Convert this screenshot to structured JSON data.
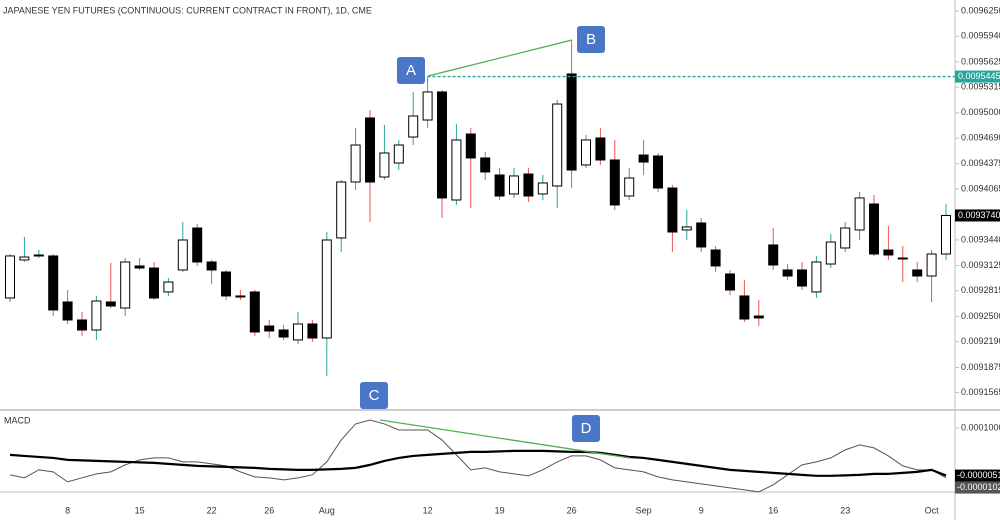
{
  "chart_data": [
    {
      "type": "candlestick",
      "title": "JAPANESE YEN FUTURES (CONTINUOUS: CURRENT CONTRACT IN FRONT), 1D, CME",
      "categories": [
        null,
        null,
        null,
        null,
        "8",
        null,
        null,
        null,
        null,
        "15",
        null,
        null,
        null,
        null,
        "22",
        null,
        null,
        null,
        "26",
        null,
        null,
        null,
        "Aug",
        null,
        null,
        null,
        null,
        null,
        null,
        "12",
        null,
        null,
        null,
        null,
        "19",
        null,
        null,
        null,
        null,
        "26",
        null,
        null,
        null,
        null,
        "Sep",
        null,
        null,
        null,
        "9",
        null,
        null,
        null,
        null,
        "16",
        null,
        null,
        null,
        null,
        "23",
        null,
        null,
        null,
        null,
        null,
        "Oct",
        null
      ],
      "open": [
        0.0092727,
        0.0093194,
        0.0093243,
        0.0093243,
        0.0092678,
        0.0092457,
        0.0092334,
        0.0092678,
        0.0092604,
        0.009312,
        0.0093095,
        0.0092801,
        0.0093071,
        0.0093586,
        0.0093169,
        0.0093046,
        0.0092752,
        0.0092801,
        0.0092383,
        0.0092334,
        0.0092212,
        0.0092408,
        0.0092236,
        0.0093464,
        0.0094151,
        0.0094937,
        0.0094212,
        0.0094384,
        0.0094703,
        0.0094912,
        0.0095256,
        0.009393,
        0.009474,
        0.0094446,
        0.0094237,
        0.0094004,
        0.0094249,
        0.0094004,
        0.0094102,
        0.0095477,
        0.009436,
        0.0094691,
        0.0094421,
        0.0093979,
        0.0094482,
        0.009447,
        0.0094077,
        0.0093562,
        0.0093648,
        0.0093316,
        0.0093022,
        0.0092752,
        0.0092506,
        0.0093378,
        0.0093071,
        0.0093071,
        0.0092801,
        0.0093144,
        0.0093341,
        0.0093562,
        0.0093881,
        0.0093316,
        0.0093218,
        0.0093071,
        0.0092997,
        0.0093267
      ],
      "high": [
        0.0093267,
        0.0093476,
        0.0093316,
        0.0093267,
        0.0092825,
        0.0092555,
        0.0092752,
        0.0093157,
        0.0093218,
        0.0093218,
        0.0093169,
        0.0092973,
        0.009366,
        0.0093635,
        0.0093194,
        0.0093071,
        0.0092825,
        0.0092825,
        0.0092457,
        0.0092396,
        0.0092555,
        0.0092457,
        0.0093537,
        0.0094176,
        0.0094814,
        0.0095035,
        0.0094851,
        0.0094667,
        0.0095256,
        0.0095445,
        0.009528,
        0.0094863,
        0.0094814,
        0.0094519,
        0.0094323,
        0.0094323,
        0.0094323,
        0.0094237,
        0.0095158,
        0.0095894,
        0.0094728,
        0.0094814,
        0.0094667,
        0.0094323,
        0.0094667,
        0.0094507,
        0.0094114,
        0.0093807,
        0.0093709,
        0.0093365,
        0.0093071,
        0.0092948,
        0.0092702,
        0.0093586,
        0.0093144,
        0.0093169,
        0.0093243,
        0.0093513,
        0.009366,
        0.0094028,
        0.0093991,
        0.0093611,
        0.0093365,
        0.0093169,
        0.0093316,
        0.0093881
      ],
      "low": [
        0.0092678,
        0.0093169,
        0.0093218,
        0.0092506,
        0.0092408,
        0.0092261,
        0.0092212,
        0.0092604,
        0.0092506,
        0.0093071,
        0.0092702,
        0.0092752,
        0.0093046,
        0.009312,
        0.0092899,
        0.0092702,
        0.0092702,
        0.0092261,
        0.0092236,
        0.0092212,
        0.0092162,
        0.0092187,
        0.009177,
        0.0093292,
        0.0094053,
        0.009366,
        0.0094176,
        0.0094298,
        0.0094605,
        0.0094814,
        0.0093709,
        0.0093869,
        0.0093832,
        0.0094176,
        0.009393,
        0.0093955,
        0.0093905,
        0.009393,
        0.0093832,
        0.0094077,
        0.0094323,
        0.009436,
        0.0093807,
        0.009393,
        0.0094237,
        0.0094028,
        0.0093292,
        0.0093439,
        0.0093292,
        0.0093046,
        0.0092764,
        0.0092432,
        0.0092383,
        0.0093071,
        0.0092948,
        0.0092825,
        0.0092727,
        0.0093095,
        0.0093292,
        0.0093439,
        0.0093243,
        0.0093194,
        0.0092923,
        0.0092923,
        0.0092678,
        0.0093194
      ],
      "close": [
        0.0093243,
        0.009323,
        0.0093255,
        0.009258,
        0.0092457,
        0.0092334,
        0.009269,
        0.0092629,
        0.0093169,
        0.0093095,
        0.0092727,
        0.0092923,
        0.0093439,
        0.0093169,
        0.0093071,
        0.0092752,
        0.0092739,
        0.009231,
        0.0092322,
        0.0092248,
        0.0092408,
        0.0092236,
        0.0093439,
        0.0094151,
        0.0094605,
        0.0094151,
        0.0094507,
        0.0094605,
        0.0094961,
        0.0095256,
        0.0093955,
        0.0094667,
        0.0094446,
        0.0094274,
        0.0093979,
        0.0094225,
        0.0093979,
        0.0094139,
        0.0095108,
        0.0094298,
        0.0094667,
        0.0094421,
        0.0093869,
        0.00942,
        0.0094396,
        0.0094077,
        0.0093537,
        0.0093599,
        0.0093353,
        0.009312,
        0.0092825,
        0.0092469,
        0.0092482,
        0.0093132,
        0.0092997,
        0.0092874,
        0.0093169,
        0.0093414,
        0.0093586,
        0.0093955,
        0.0093267,
        0.0093255,
        0.0093206,
        0.0092997,
        0.0093267,
        0.009374
      ],
      "last_label": "0.0093740",
      "up_color": "#ffffff",
      "down_color": "#000000",
      "border_color": "#000000",
      "wick_up_color": "#26a69a",
      "wick_down_color": "#ef5350",
      "ylim": [
        0.0091352,
        0.0096385
      ],
      "yticks": [
        {
          "value": 0.009625,
          "label": "0.0096250"
        },
        {
          "value": 0.009594,
          "label": "0.0095940"
        },
        {
          "value": 0.0095625,
          "label": "0.0095625"
        },
        {
          "value": 0.0095315,
          "label": "0.0095315"
        },
        {
          "value": 0.0095,
          "label": "0.0095000"
        },
        {
          "value": 0.009469,
          "label": "0.0094690"
        },
        {
          "value": 0.0094375,
          "label": "0.0094375"
        },
        {
          "value": 0.0094065,
          "label": "0.0094065"
        },
        {
          "value": 0.009344,
          "label": "0.0093440"
        },
        {
          "value": 0.0093125,
          "label": "0.0093125"
        },
        {
          "value": 0.0092815,
          "label": "0.0092815"
        },
        {
          "value": 0.00925,
          "label": "0.0092500"
        },
        {
          "value": 0.009219,
          "label": "0.0092190"
        },
        {
          "value": 0.0091875,
          "label": "0.0091875"
        },
        {
          "value": 0.0091565,
          "label": "0.0091565"
        }
      ],
      "hline": {
        "value": 0.0095445,
        "label": "0.0095445",
        "color": "#26a69a"
      },
      "annotations": [
        "A",
        "B"
      ]
    },
    {
      "type": "line",
      "title": "MACD",
      "series": [
        {
          "color": "#555555",
          "width": 1,
          "last_label": "-0.0000102",
          "values": [
            -3.5e-06,
            -1.01e-05,
            7.5e-06,
            3.1e-06,
            -1.9e-05,
            -1.01e-05,
            -1.3e-06,
            3.1e-06,
            1.85e-05,
            2.95e-05,
            3.39e-05,
            3.39e-05,
            2.51e-05,
            2.51e-05,
            2.07e-05,
            1.63e-05,
            3.1e-06,
            -7.9e-06,
            -1.01e-05,
            -1.45e-05,
            -1.01e-05,
            -3.5e-06,
            2.51e-05,
            7.36e-05,
            0.0001089,
            0.0001177,
            0.0001089,
            9.56e-05,
            9.56e-05,
            9.56e-05,
            7.36e-05,
            4.06e-05,
            7.5e-06,
            1.19e-05,
            3.1e-06,
            -1.3e-06,
            -5.7e-06,
            7.5e-06,
            2.51e-05,
            3.83e-05,
            3.83e-05,
            2.95e-05,
            1.19e-05,
            7.5e-06,
            3.1e-06,
            -7.9e-06,
            -1.45e-05,
            -1.9e-05,
            -2.34e-05,
            -2.78e-05,
            -3.22e-05,
            -3.66e-05,
            -4.1e-05,
            -2.56e-05,
            -3.5e-06,
            1.85e-05,
            2.51e-05,
            3.39e-05,
            5.16e-05,
            6.26e-05,
            5.6e-05,
            3.83e-05,
            1.63e-05,
            7.5e-06,
            7.5e-06,
            -1.02e-05
          ]
        },
        {
          "color": "#000000",
          "width": 2.2,
          "last_label": "-0.0000051",
          "values": [
            4.06e-05,
            3.83e-05,
            3.61e-05,
            3.39e-05,
            2.95e-05,
            2.84e-05,
            2.73e-05,
            2.62e-05,
            2.51e-05,
            2.4e-05,
            2.29e-05,
            2.07e-05,
            1.85e-05,
            1.63e-05,
            1.52e-05,
            1.41e-05,
            1.3e-05,
            1.19e-05,
            9.7e-06,
            8.6e-06,
            7.5e-06,
            7.5e-06,
            8.6e-06,
            9.7e-06,
            1.19e-05,
            1.85e-05,
            2.73e-05,
            3.39e-05,
            3.83e-05,
            4.06e-05,
            4.28e-05,
            4.5e-05,
            4.72e-05,
            4.72e-05,
            4.83e-05,
            4.94e-05,
            4.94e-05,
            4.94e-05,
            4.83e-05,
            4.72e-05,
            4.72e-05,
            4.5e-05,
            4.06e-05,
            3.61e-05,
            3.39e-05,
            2.95e-05,
            2.51e-05,
            2.07e-05,
            1.63e-05,
            1.19e-05,
            7.5e-06,
            5.3e-06,
            3.1e-06,
            9e-07,
            -1.3e-06,
            -3.5e-06,
            -5.7e-06,
            -5.7e-06,
            -4.6e-06,
            -3.5e-06,
            -1.3e-06,
            -1.3e-06,
            9e-07,
            3.1e-06,
            7.5e-06,
            -5.1e-06
          ]
        }
      ],
      "ylim": [
        -4.14e-05,
        0.0001353
      ],
      "yticks": [
        {
          "value": 0.0001,
          "label": "0.0001000"
        }
      ],
      "annotations": [
        "C",
        "D"
      ]
    }
  ]
}
